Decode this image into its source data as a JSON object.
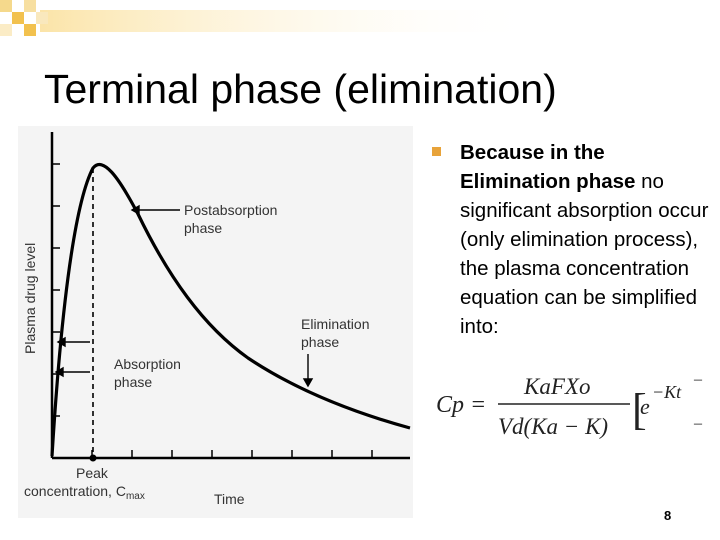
{
  "slide": {
    "title": "Terminal phase (elimination)",
    "page_number": "8"
  },
  "figure": {
    "y_axis_label": "Plasma drug level",
    "x_axis_label": "Time",
    "peak_label_line1": "Peak",
    "peak_label_line2": "concentration, C",
    "peak_label_sub": "max",
    "postabsorption_label_line1": "Postabsorption",
    "postabsorption_label_line2": "phase",
    "elimination_label_line1": "Elimination",
    "elimination_label_line2": "phase",
    "absorption_label_line1": "Absorption",
    "absorption_label_line2": "phase"
  },
  "bullet": {
    "bold_text": "Because in the Elimination phase",
    "rest_text": " no significant absorption occur (only elimination process), the plasma concentration equation can be simplified into:"
  },
  "equation": {
    "lhs": "Cp =",
    "numerator": "KaFXo",
    "denominator": "Vd(Ka − K)",
    "exp_base": "e",
    "exp_power": "−Kt",
    "bracket_open": "[",
    "dash": "–"
  },
  "colors": {
    "bullet": "#e8a33a",
    "figure_bg": "#f4f4f4",
    "corner_square": "#f2c14e",
    "corner_fade": "#fbe7b6"
  }
}
